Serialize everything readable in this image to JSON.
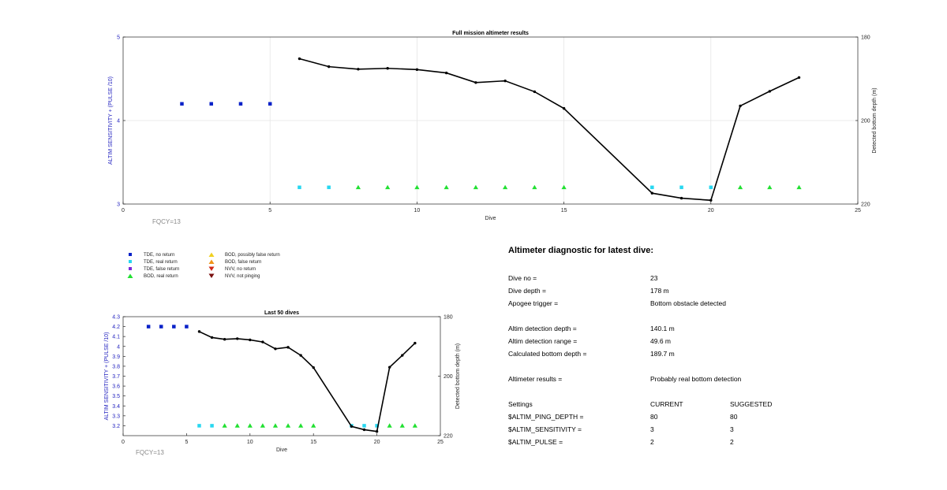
{
  "colors": {
    "tde_no_return": "#0a22c8",
    "tde_real_return": "#28d7f0",
    "tde_false_return": "#7a2ad8",
    "bod_real_return": "#22e032",
    "bod_possibly_false": "#f0d020",
    "bod_false_return": "#f09418",
    "nvv_no_return": "#d02818",
    "nvv_not_pinging": "#7a1010",
    "left_axis": "#2424c0",
    "depth_line": "#000000",
    "fqcy_text": "#8a8a8a"
  },
  "chart_data": [
    {
      "type": "scatter",
      "title": "Full mission altimeter results",
      "xlabel": "Dive",
      "ylabel_left": "ALTIM SENSITIVITY + (PULSE /10)",
      "ylabel_right": "Detected bottom depth (m)",
      "xlim": [
        0,
        25
      ],
      "ylim_left": [
        3,
        5
      ],
      "ylim_right": [
        220,
        180
      ],
      "x_ticks": [
        0,
        5,
        10,
        15,
        20,
        25
      ],
      "y_ticks_left": [
        3,
        4,
        5
      ],
      "y_ticks_right": [
        180,
        200,
        220
      ],
      "annotation": "FQCY=13",
      "grid": true,
      "series": [
        {
          "name": "TDE, no return",
          "marker": "square",
          "x": [
            2,
            3,
            4,
            5
          ],
          "y": [
            4.2,
            4.2,
            4.2,
            4.2
          ]
        },
        {
          "name": "TDE, real return",
          "marker": "square",
          "x": [
            6,
            7,
            18,
            19,
            20
          ],
          "y": [
            3.2,
            3.2,
            3.2,
            3.2,
            3.2
          ]
        },
        {
          "name": "BOD, real return",
          "marker": "triangle-up",
          "x": [
            8,
            9,
            10,
            11,
            12,
            13,
            14,
            15,
            21,
            22,
            23
          ],
          "y": [
            3.2,
            3.2,
            3.2,
            3.2,
            3.2,
            3.2,
            3.2,
            3.2,
            3.2,
            3.2,
            3.2
          ]
        }
      ],
      "depth_series": {
        "x": [
          6,
          7,
          8,
          9,
          10,
          11,
          12,
          13,
          14,
          15,
          18,
          19,
          20,
          21,
          22,
          23
        ],
        "depth": [
          185.2,
          187.1,
          187.7,
          187.5,
          187.8,
          188.6,
          190.9,
          190.5,
          193.1,
          197.1,
          217.4,
          218.6,
          219.1,
          196.5,
          193.0,
          189.7
        ]
      }
    },
    {
      "type": "scatter",
      "title": "Last 50 dives",
      "xlabel": "Dive",
      "ylabel_left": "ALTIM SENSITIVITY + (PULSE /10)",
      "ylabel_right": "Detected bottom depth (m)",
      "xlim": [
        0,
        25
      ],
      "ylim_left": [
        3.1,
        4.3
      ],
      "ylim_right": [
        220,
        180
      ],
      "x_ticks": [
        0,
        5,
        10,
        15,
        20,
        25
      ],
      "y_ticks_left": [
        3.2,
        3.3,
        3.4,
        3.5,
        3.6,
        3.7,
        3.8,
        3.9,
        4,
        4.1,
        4.2,
        4.3
      ],
      "y_ticks_right": [
        180,
        200,
        220
      ],
      "annotation": "FQCY=13",
      "grid": false,
      "series": [
        {
          "name": "TDE, no return",
          "marker": "square",
          "x": [
            2,
            3,
            4,
            5
          ],
          "y": [
            4.2,
            4.2,
            4.2,
            4.2
          ]
        },
        {
          "name": "TDE, real return",
          "marker": "square",
          "x": [
            6,
            7,
            18,
            19,
            20
          ],
          "y": [
            3.2,
            3.2,
            3.2,
            3.2,
            3.2
          ]
        },
        {
          "name": "BOD, real return",
          "marker": "triangle-up",
          "x": [
            8,
            9,
            10,
            11,
            12,
            13,
            14,
            15,
            21,
            22,
            23
          ],
          "y": [
            3.2,
            3.2,
            3.2,
            3.2,
            3.2,
            3.2,
            3.2,
            3.2,
            3.2,
            3.2,
            3.2
          ]
        }
      ],
      "depth_series": {
        "x": [
          6,
          7,
          8,
          9,
          10,
          11,
          12,
          13,
          14,
          15,
          18,
          19,
          20,
          21,
          22,
          23
        ],
        "depth": [
          185.0,
          187.0,
          187.6,
          187.4,
          187.8,
          188.5,
          190.8,
          190.3,
          193.0,
          197.1,
          216.9,
          218.0,
          218.6,
          197.0,
          193.0,
          188.9
        ]
      }
    }
  ],
  "legend": [
    {
      "label": "TDE, no return",
      "symbol": "square",
      "color_key": "tde_no_return"
    },
    {
      "label": "TDE, real return",
      "symbol": "square",
      "color_key": "tde_real_return"
    },
    {
      "label": "TDE, false return",
      "symbol": "square",
      "color_key": "tde_false_return"
    },
    {
      "label": "BOD, real return",
      "symbol": "triangle-up",
      "color_key": "bod_real_return"
    },
    {
      "label": "BOD, possibly false return",
      "symbol": "triangle-up",
      "color_key": "bod_possibly_false"
    },
    {
      "label": "BOD, false return",
      "symbol": "triangle-up",
      "color_key": "bod_false_return"
    },
    {
      "label": "NVV, no return",
      "symbol": "triangle-down",
      "color_key": "nvv_no_return"
    },
    {
      "label": "NVV, not pinging",
      "symbol": "triangle-down",
      "color_key": "nvv_not_pinging"
    }
  ],
  "diagnostic": {
    "title": "Altimeter diagnostic for latest dive:",
    "dive_no_label": "Dive no =",
    "dive_no": "23",
    "dive_depth_label": "Dive depth =",
    "dive_depth": "178 m",
    "apogee_label": "Apogee trigger =",
    "apogee": "Bottom obstacle detected",
    "detection_depth_label": "Altim detection depth =",
    "detection_depth": "140.1 m",
    "detection_range_label": "Altim detection range =",
    "detection_range": "49.6 m",
    "calc_bottom_label": "Calculated bottom depth =",
    "calc_bottom": "189.7 m",
    "results_label": "Altimeter results =",
    "results": "Probably real bottom detection",
    "settings_label": "Settings",
    "current_label": "CURRENT",
    "suggested_label": "SUGGESTED",
    "settings": [
      {
        "name": "$ALTIM_PING_DEPTH =",
        "current": "80",
        "suggested": "80"
      },
      {
        "name": "$ALTIM_SENSITIVITY =",
        "current": "3",
        "suggested": "3"
      },
      {
        "name": "$ALTIM_PULSE =",
        "current": "2",
        "suggested": "2"
      }
    ]
  }
}
